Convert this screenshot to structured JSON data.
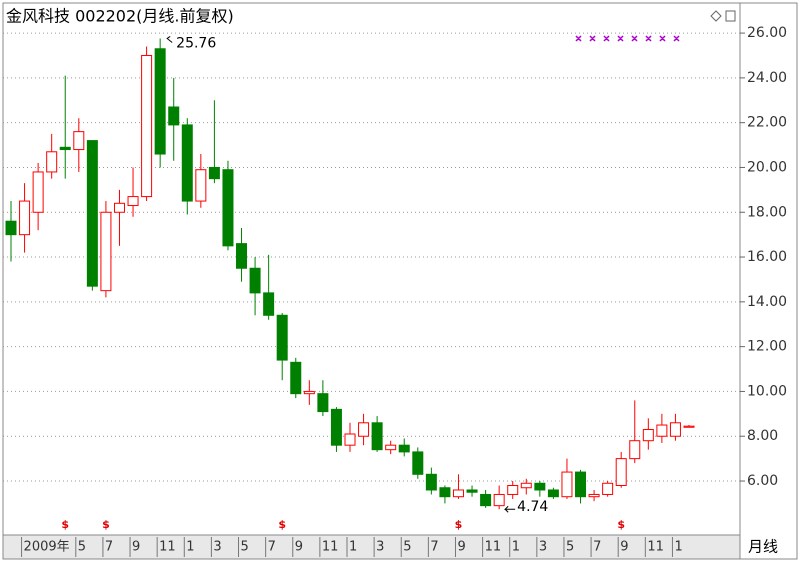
{
  "chart_data": {
    "type": "candlestick",
    "title": "金风科技 002202(月线.前复权)",
    "period_label": "月线",
    "categories": [
      null,
      "2009年",
      null,
      null,
      null,
      "5",
      null,
      "7",
      null,
      "9",
      null,
      "11",
      null,
      "1",
      null,
      "3",
      null,
      "5",
      null,
      "7",
      null,
      "9",
      null,
      "11",
      null,
      "1",
      null,
      "3",
      null,
      "5",
      null,
      "7",
      null,
      "9",
      null,
      "11",
      null,
      "1",
      null,
      "3",
      null,
      "5",
      null,
      "7",
      null,
      "9",
      null,
      "11",
      null,
      "1",
      null
    ],
    "open": [
      17.6,
      17.0,
      18.0,
      19.8,
      20.9,
      20.8,
      21.2,
      14.5,
      18.0,
      18.3,
      18.7,
      25.3,
      22.7,
      21.9,
      18.5,
      20.0,
      19.9,
      16.6,
      15.5,
      14.4,
      13.4,
      11.3,
      9.9,
      9.9,
      9.2,
      7.6,
      8.0,
      8.6,
      7.4,
      7.6,
      7.3,
      6.3,
      5.7,
      5.3,
      5.6,
      5.4,
      4.9,
      5.4,
      5.7,
      5.9,
      5.6,
      5.3,
      6.4,
      5.3,
      5.4,
      5.8,
      7.0,
      7.8,
      8.0,
      8.0,
      8.4
    ],
    "high": [
      18.5,
      19.3,
      20.2,
      21.5,
      24.1,
      22.2,
      21.2,
      18.5,
      19.0,
      20.0,
      25.4,
      25.76,
      24.0,
      22.2,
      20.6,
      23.0,
      20.3,
      17.3,
      16.0,
      16.1,
      13.5,
      11.5,
      10.5,
      10.5,
      9.3,
      8.6,
      9.0,
      8.9,
      7.8,
      7.9,
      7.5,
      6.6,
      5.8,
      6.3,
      5.8,
      5.6,
      5.8,
      6.0,
      6.1,
      6.0,
      5.7,
      7.0,
      6.5,
      5.6,
      6.0,
      7.3,
      9.6,
      8.8,
      9.0,
      9.0,
      8.5
    ],
    "low": [
      15.8,
      16.2,
      17.2,
      19.5,
      19.5,
      19.8,
      14.5,
      14.2,
      16.5,
      17.8,
      18.5,
      20.0,
      20.3,
      17.9,
      18.2,
      19.3,
      16.3,
      14.9,
      13.4,
      13.2,
      10.5,
      9.7,
      9.4,
      8.9,
      7.3,
      7.3,
      7.6,
      7.3,
      7.2,
      7.1,
      6.1,
      5.4,
      5.0,
      5.2,
      5.3,
      4.8,
      4.74,
      5.2,
      5.4,
      5.3,
      5.2,
      5.2,
      5.0,
      5.1,
      5.3,
      5.7,
      6.8,
      7.4,
      7.7,
      7.8,
      8.4
    ],
    "close": [
      17.0,
      18.5,
      19.8,
      20.7,
      20.8,
      21.6,
      14.7,
      18.0,
      18.4,
      18.7,
      25.0,
      20.6,
      21.9,
      18.5,
      19.9,
      19.5,
      16.5,
      15.5,
      14.4,
      13.4,
      11.4,
      9.9,
      10.0,
      9.1,
      7.6,
      8.1,
      8.6,
      7.4,
      7.6,
      7.3,
      6.3,
      5.6,
      5.3,
      5.6,
      5.5,
      4.9,
      5.4,
      5.8,
      5.9,
      5.6,
      5.3,
      6.4,
      5.3,
      5.4,
      5.9,
      7.0,
      7.8,
      8.3,
      8.5,
      8.6,
      8.45
    ],
    "event_markers": [
      null,
      null,
      null,
      null,
      "$",
      null,
      null,
      "$",
      null,
      null,
      null,
      null,
      null,
      null,
      null,
      null,
      null,
      null,
      null,
      null,
      "$",
      null,
      null,
      null,
      null,
      null,
      null,
      null,
      null,
      null,
      null,
      null,
      null,
      "$",
      null,
      null,
      null,
      null,
      null,
      null,
      null,
      null,
      null,
      null,
      null,
      "$",
      null,
      null,
      null,
      null,
      null
    ],
    "up_color": "#ff0000",
    "down_color": "#008000",
    "ylim": [
      3.59,
      27.12
    ],
    "yticks": [
      {
        "value": 6,
        "label": "6.00"
      },
      {
        "value": 8,
        "label": "8.00"
      },
      {
        "value": 10,
        "label": "10.00"
      },
      {
        "value": 12,
        "label": "12.00"
      },
      {
        "value": 14,
        "label": "14.00"
      },
      {
        "value": 16,
        "label": "16.00"
      },
      {
        "value": 18,
        "label": "18.00"
      },
      {
        "value": 20,
        "label": "20.00"
      },
      {
        "value": 22,
        "label": "22.00"
      },
      {
        "value": 24,
        "label": "24.00"
      },
      {
        "value": 26,
        "label": "26.00"
      }
    ],
    "grid": true
  }
}
